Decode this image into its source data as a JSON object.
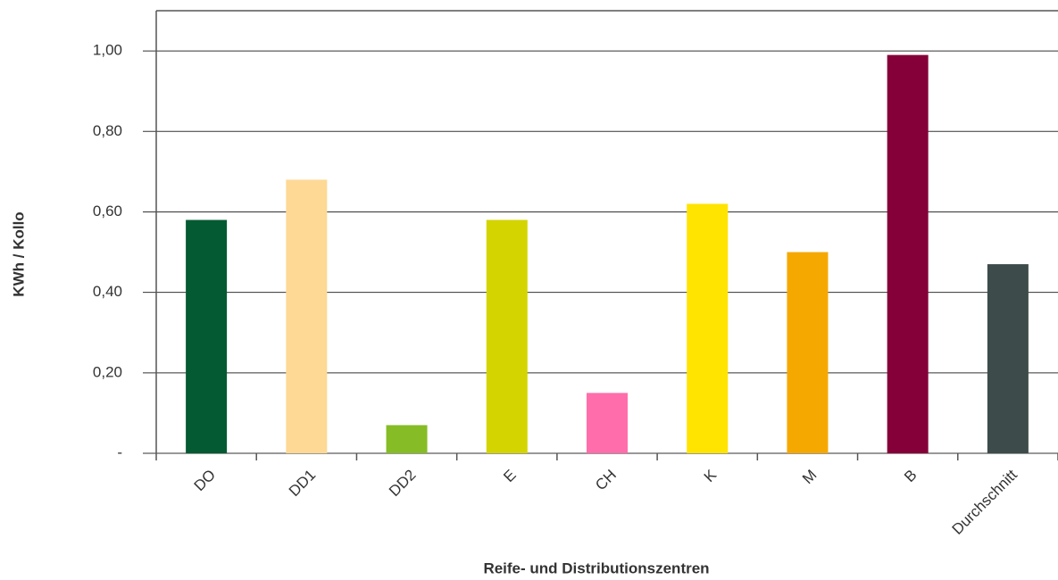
{
  "chart_data": {
    "type": "bar",
    "x_label": "Reife- und Distributionszentren",
    "y_label": "KWh / Kollo",
    "categories": [
      "DO",
      "DD1",
      "DD2",
      "E",
      "CH",
      "K",
      "M",
      "B",
      "Durchschnitt"
    ],
    "values": [
      0.58,
      0.68,
      0.07,
      0.58,
      0.15,
      0.62,
      0.5,
      0.99,
      0.47
    ],
    "colors": [
      "#045a32",
      "#fdd995",
      "#86bc25",
      "#d4d400",
      "#ff6eaa",
      "#ffe400",
      "#f5a800",
      "#850038",
      "#3d4b4b"
    ],
    "ylim": [
      0,
      1.1
    ],
    "yticks": [
      {
        "value": 0,
        "label": "-"
      },
      {
        "value": 0.2,
        "label": "0,20"
      },
      {
        "value": 0.4,
        "label": "0,40"
      },
      {
        "value": 0.6,
        "label": "0,60"
      },
      {
        "value": 0.8,
        "label": "0,80"
      },
      {
        "value": 1.0,
        "label": "1,00"
      }
    ],
    "grid": true
  }
}
